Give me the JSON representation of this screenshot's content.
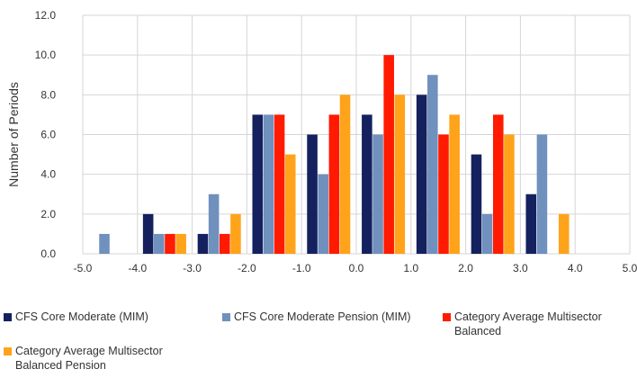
{
  "chart_data": {
    "type": "bar",
    "ylabel": "Number of Periods",
    "ylim": [
      0,
      12
    ],
    "yticks": [
      "0.0",
      "2.0",
      "4.0",
      "6.0",
      "8.0",
      "10.0",
      "12.0"
    ],
    "xlim": [
      -5,
      5
    ],
    "xticks": [
      "-5.0",
      "-4.0",
      "-3.0",
      "-2.0",
      "-1.0",
      "0.0",
      "1.0",
      "2.0",
      "3.0",
      "4.0",
      "5.0"
    ],
    "grid": true,
    "legend_position": "bottom",
    "x": [
      -4.5,
      -3.5,
      -2.5,
      -1.5,
      -0.5,
      0.5,
      1.5,
      2.5,
      3.5,
      4.5
    ],
    "series": [
      {
        "name": "CFS Core Moderate (MIM)",
        "color": "#14215e",
        "values": [
          0,
          2,
          1,
          7,
          6,
          7,
          8,
          5,
          3,
          0
        ]
      },
      {
        "name": "CFS Core Moderate Pension (MIM)",
        "color": "#7090bd",
        "values": [
          1,
          1,
          3,
          7,
          4,
          6,
          9,
          2,
          6,
          0
        ]
      },
      {
        "name": "Category Average Multisector Balanced",
        "color": "#ff1a00",
        "values": [
          0,
          1,
          1,
          7,
          7,
          10,
          6,
          7,
          0,
          0
        ]
      },
      {
        "name": "Category Average Multisector Balanced Pension",
        "color": "#ffa31a",
        "values": [
          0,
          1,
          2,
          5,
          8,
          8,
          7,
          6,
          2,
          0
        ]
      }
    ]
  },
  "legend": {
    "items": [
      {
        "label": "CFS Core Moderate (MIM)",
        "color": "#14215e"
      },
      {
        "label": "CFS Core Moderate Pension (MIM)",
        "color": "#7090bd"
      },
      {
        "label": "Category Average Multisector Balanced",
        "color": "#ff1a00"
      },
      {
        "label": "Category Average Multisector Balanced Pension",
        "color": "#ffa31a"
      }
    ]
  }
}
